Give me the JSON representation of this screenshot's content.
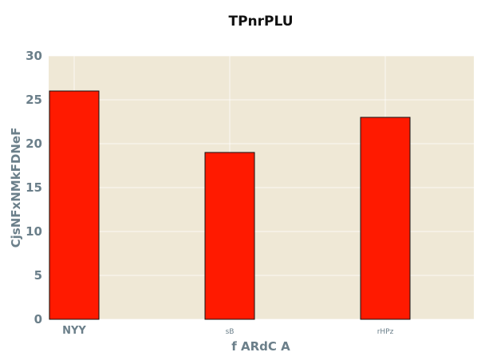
{
  "chart_data": {
    "type": "bar",
    "title": "TPnrPLU",
    "xlabel": "f ARdC  A",
    "ylabel": "CjsNFxNMkFDNeF",
    "categories": [
      "NYY",
      "sB",
      "rHPz"
    ],
    "values": [
      26,
      19,
      23
    ],
    "ylim": [
      0,
      30
    ],
    "yticks": [
      "0",
      "5",
      "10",
      "15",
      "20",
      "25",
      "30"
    ],
    "grid": true,
    "colors": {
      "bar": "#ff1a00",
      "plot_background": "#efe8d6"
    }
  }
}
